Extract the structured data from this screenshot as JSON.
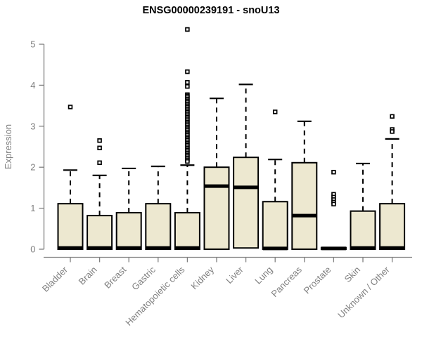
{
  "colors": {
    "background": "#ffffff",
    "box_fill": "#ede8d0",
    "box_stroke": "#000000",
    "median": "#000000",
    "whisker": "#000000",
    "outlier_stroke": "#000000",
    "outlier_fill": "#ffffff",
    "axis_line": "#808080",
    "axis_text": "#7f7f7f",
    "title_text": "#000000"
  },
  "chart_data": {
    "type": "boxplot",
    "title": "ENSG00000239191 - snoU13",
    "xlabel": "",
    "ylabel": "Expression",
    "ylim": [
      0,
      5
    ],
    "yticks": [
      0,
      1,
      2,
      3,
      4,
      5
    ],
    "grid": false,
    "legend": false,
    "categories": [
      "Bladder",
      "Brain",
      "Breast",
      "Gastric",
      "Hematopoietic cells",
      "Kidney",
      "Liver",
      "Lung",
      "Pancreas",
      "Prostate",
      "Skin",
      "Unknown / Other"
    ],
    "boxes": [
      {
        "category": "Bladder",
        "q1": 0,
        "median": 0.03,
        "q3": 1.11,
        "whisker_low": 0,
        "whisker_high": 1.93,
        "outliers": [
          3.47
        ]
      },
      {
        "category": "Brain",
        "q1": 0,
        "median": 0.03,
        "q3": 0.82,
        "whisker_low": 0,
        "whisker_high": 1.8,
        "outliers": [
          2.65,
          2.47,
          2.11
        ]
      },
      {
        "category": "Breast",
        "q1": 0,
        "median": 0.03,
        "q3": 0.89,
        "whisker_low": 0,
        "whisker_high": 1.97,
        "outliers": []
      },
      {
        "category": "Gastric",
        "q1": 0,
        "median": 0.03,
        "q3": 1.11,
        "whisker_low": 0,
        "whisker_high": 2.02,
        "outliers": []
      },
      {
        "category": "Hematopoietic cells",
        "q1": 0,
        "median": 0.03,
        "q3": 0.89,
        "whisker_low": 0,
        "whisker_high": 2.05,
        "outliers": [
          5.36,
          4.33,
          4.07,
          3.97,
          3.77,
          3.74,
          3.7,
          3.66,
          3.62,
          3.58,
          3.54,
          3.5,
          3.46,
          3.42,
          3.38,
          3.34,
          3.3,
          3.26,
          3.22,
          3.18,
          3.14,
          3.1,
          3.06,
          3.02,
          2.98,
          2.94,
          2.9,
          2.86,
          2.82,
          2.78,
          2.74,
          2.7,
          2.66,
          2.62,
          2.58,
          2.54,
          2.5,
          2.46,
          2.42,
          2.38,
          2.34,
          2.3,
          2.26,
          2.22,
          2.18,
          2.14
        ]
      },
      {
        "category": "Kidney",
        "q1": 0,
        "median": 1.54,
        "q3": 2.0,
        "whisker_low": 0,
        "whisker_high": 3.68,
        "outliers": []
      },
      {
        "category": "Liver",
        "q1": 0.03,
        "median": 1.51,
        "q3": 2.24,
        "whisker_low": 0.03,
        "whisker_high": 4.02,
        "outliers": []
      },
      {
        "category": "Lung",
        "q1": 0,
        "median": 0.02,
        "q3": 1.16,
        "whisker_low": 0,
        "whisker_high": 2.19,
        "outliers": [
          3.35
        ]
      },
      {
        "category": "Pancreas",
        "q1": 0,
        "median": 0.82,
        "q3": 2.11,
        "whisker_low": 0,
        "whisker_high": 3.12,
        "outliers": []
      },
      {
        "category": "Prostate",
        "q1": 0,
        "median": 0.02,
        "q3": 0.04,
        "whisker_low": 0,
        "whisker_high": 0.04,
        "outliers": [
          1.88,
          1.34,
          1.27,
          1.21,
          1.15,
          1.1
        ]
      },
      {
        "category": "Skin",
        "q1": 0,
        "median": 0.03,
        "q3": 0.93,
        "whisker_low": 0,
        "whisker_high": 2.09,
        "outliers": []
      },
      {
        "category": "Unknown / Other",
        "q1": 0,
        "median": 0.03,
        "q3": 1.11,
        "whisker_low": 0,
        "whisker_high": 2.69,
        "outliers": [
          3.24,
          2.92,
          2.87
        ]
      }
    ]
  }
}
